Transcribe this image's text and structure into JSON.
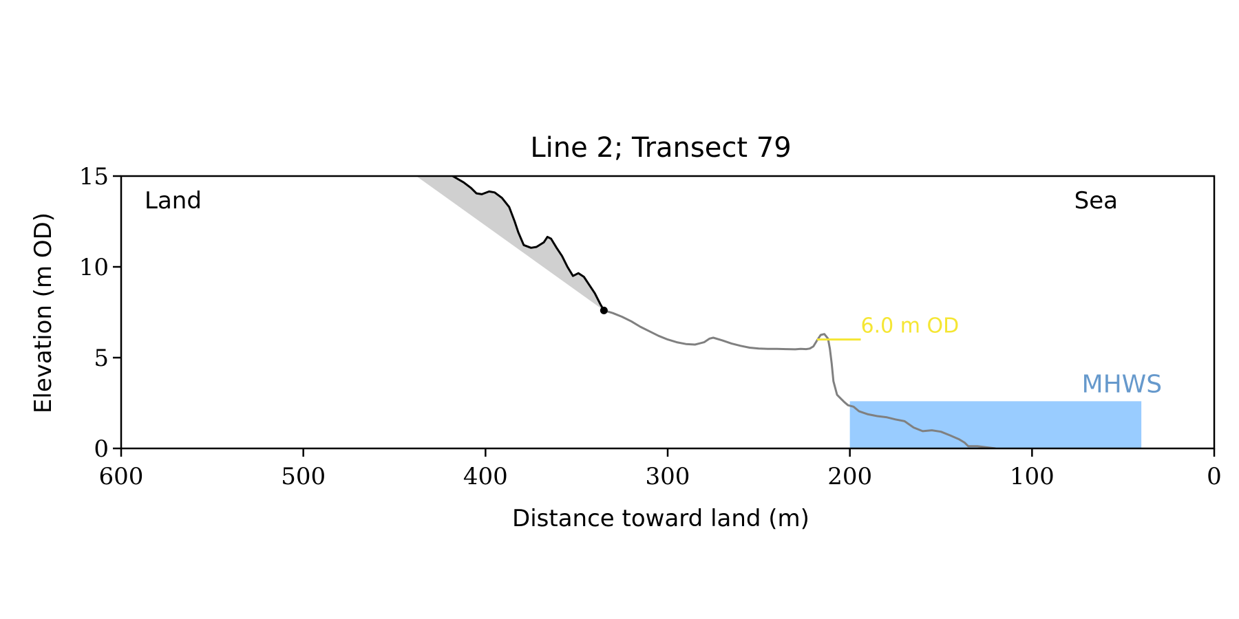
{
  "chart_data": {
    "type": "line",
    "title": "Line 2; Transect 79",
    "xlabel": "Distance toward land (m)",
    "ylabel": "Elevation (m OD)",
    "xlim": [
      600,
      0
    ],
    "ylim": [
      0,
      15
    ],
    "xticks": [
      600,
      500,
      400,
      300,
      200,
      100,
      0
    ],
    "yticks": [
      0,
      5,
      10,
      15
    ],
    "grid": false,
    "corner_labels": {
      "left": "Land",
      "right": "Sea"
    },
    "colors": {
      "cliff": "#000000",
      "profile": "#808080",
      "cliff_fill": "#d0d0d0",
      "mhws": "#99ccff",
      "mhws_label": "#6699cc",
      "od_line": "#f5e633"
    },
    "series": [
      {
        "name": "",
        "role": "cliff",
        "x": [
          418,
          412,
          408,
          405,
          402,
          398,
          395,
          391,
          387,
          384,
          382,
          379,
          375,
          372,
          368,
          366,
          364,
          361,
          358,
          355,
          352,
          349,
          346,
          343,
          340,
          337,
          335
        ],
        "y": [
          15.0,
          14.65,
          14.35,
          14.05,
          14.0,
          14.15,
          14.1,
          13.8,
          13.3,
          12.5,
          11.9,
          11.2,
          11.05,
          11.1,
          11.35,
          11.65,
          11.55,
          11.05,
          10.6,
          10.0,
          9.5,
          9.65,
          9.45,
          9.0,
          8.55,
          7.95,
          7.6
        ]
      },
      {
        "name": "",
        "role": "profile",
        "x": [
          335,
          330,
          325,
          320,
          315,
          310,
          305,
          300,
          295,
          290,
          285,
          280,
          277,
          275,
          270,
          265,
          260,
          255,
          250,
          245,
          240,
          235,
          230,
          227,
          224,
          222,
          220,
          218,
          216,
          214,
          212,
          211,
          210,
          209,
          207,
          205,
          203,
          201,
          198,
          195,
          190,
          185,
          180,
          175,
          170,
          165,
          160,
          155,
          150,
          145,
          140,
          137,
          135,
          130,
          125,
          120
        ],
        "y": [
          7.6,
          7.45,
          7.25,
          7.0,
          6.7,
          6.45,
          6.2,
          6.0,
          5.85,
          5.75,
          5.72,
          5.85,
          6.05,
          6.1,
          5.95,
          5.78,
          5.65,
          5.55,
          5.5,
          5.48,
          5.48,
          5.47,
          5.46,
          5.48,
          5.47,
          5.5,
          5.62,
          5.95,
          6.25,
          6.3,
          6.05,
          5.5,
          4.7,
          3.7,
          2.95,
          2.75,
          2.55,
          2.38,
          2.3,
          2.05,
          1.88,
          1.78,
          1.72,
          1.6,
          1.5,
          1.15,
          0.95,
          1.0,
          0.92,
          0.72,
          0.5,
          0.32,
          0.12,
          0.12,
          0.06,
          0.0
        ]
      }
    ],
    "cliff_base_point": {
      "x": 335,
      "y": 7.6
    },
    "cliff_fill_line": {
      "x": [
        438,
        335
      ],
      "y": [
        15.0,
        7.6
      ]
    },
    "mhws": {
      "label": "MHWS",
      "level": 2.6,
      "x_range": [
        200,
        40
      ]
    },
    "od_marker": {
      "label": "6.0 m OD",
      "level": 6.0,
      "x_range": [
        218,
        194
      ]
    }
  }
}
